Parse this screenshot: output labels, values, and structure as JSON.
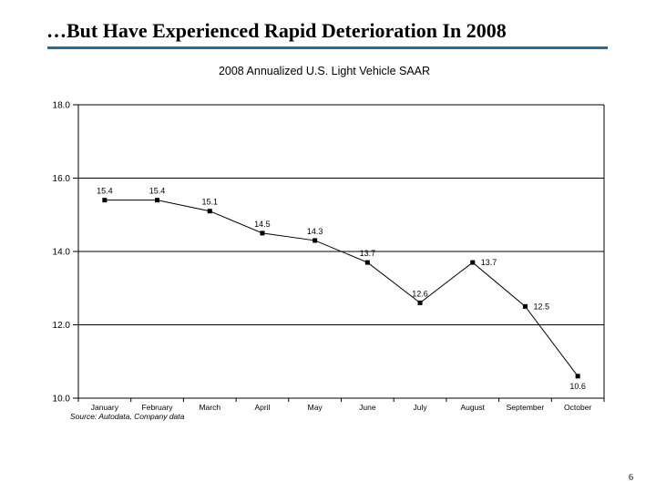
{
  "slide": {
    "title": "…But Have Experienced Rapid Deterioration In 2008",
    "accent_color": "#1f6f9e",
    "page_number": "6"
  },
  "chart_data": {
    "type": "line",
    "title": "2008 Annualized U.S. Light Vehicle SAAR",
    "categories": [
      "January",
      "February",
      "March",
      "April",
      "May",
      "June",
      "July",
      "August",
      "September",
      "October"
    ],
    "values": [
      15.4,
      15.4,
      15.1,
      14.5,
      14.3,
      13.7,
      12.6,
      13.7,
      12.5,
      10.6
    ],
    "label_positions": [
      "above",
      "above",
      "above",
      "above",
      "above",
      "above",
      "above",
      "right",
      "right",
      "below"
    ],
    "ylim": [
      10.0,
      18.0
    ],
    "yticks": [
      10.0,
      12.0,
      14.0,
      16.0,
      18.0
    ],
    "grid": true,
    "legend": "none",
    "marker": "square",
    "line_color": "#000000",
    "source": "Source: Autodata, Company data"
  }
}
